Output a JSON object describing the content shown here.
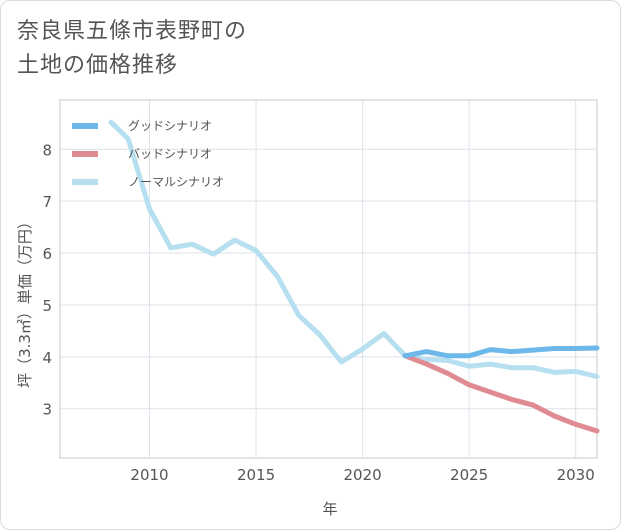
{
  "title": {
    "line1": "奈良県五條市表野町の",
    "line2": "土地の価格推移"
  },
  "chart_data": {
    "type": "line",
    "xlabel": "年",
    "ylabel": "坪（3.3㎡）単価（万円）",
    "xlim": [
      2005.8,
      2031.0
    ],
    "ylim": [
      2.05,
      8.95
    ],
    "x_ticks": [
      2010,
      2015,
      2020,
      2025,
      2030
    ],
    "y_ticks": [
      3,
      4,
      5,
      6,
      7,
      8
    ],
    "grid": true,
    "legend_position": "top-left",
    "series": [
      {
        "name": "グッドシナリオ",
        "color": "#6cb8ea",
        "x": [
          2022,
          2023,
          2024,
          2025,
          2026,
          2027,
          2028,
          2029,
          2030,
          2031
        ],
        "y": [
          4.02,
          4.1,
          4.02,
          4.02,
          4.14,
          4.1,
          4.13,
          4.16,
          4.16,
          4.17
        ]
      },
      {
        "name": "バッドシナリオ",
        "color": "#e08a92",
        "x": [
          2022,
          2023,
          2024,
          2025,
          2026,
          2027,
          2028,
          2029,
          2030,
          2031
        ],
        "y": [
          4.02,
          3.86,
          3.68,
          3.46,
          3.32,
          3.18,
          3.07,
          2.86,
          2.7,
          2.57
        ]
      },
      {
        "name": "ノーマルシナリオ",
        "color": "#b6dff0",
        "x": [
          2008.2,
          2009,
          2010,
          2011,
          2012,
          2013,
          2014,
          2015,
          2016,
          2017,
          2018,
          2019,
          2020,
          2021,
          2022,
          2023,
          2024,
          2025,
          2026,
          2027,
          2028,
          2029,
          2030,
          2031
        ],
        "y": [
          8.52,
          8.2,
          6.85,
          6.1,
          6.17,
          5.98,
          6.25,
          6.05,
          5.55,
          4.8,
          4.42,
          3.9,
          4.15,
          4.45,
          4.02,
          3.95,
          3.93,
          3.82,
          3.86,
          3.79,
          3.79,
          3.7,
          3.72,
          3.62
        ]
      }
    ]
  }
}
